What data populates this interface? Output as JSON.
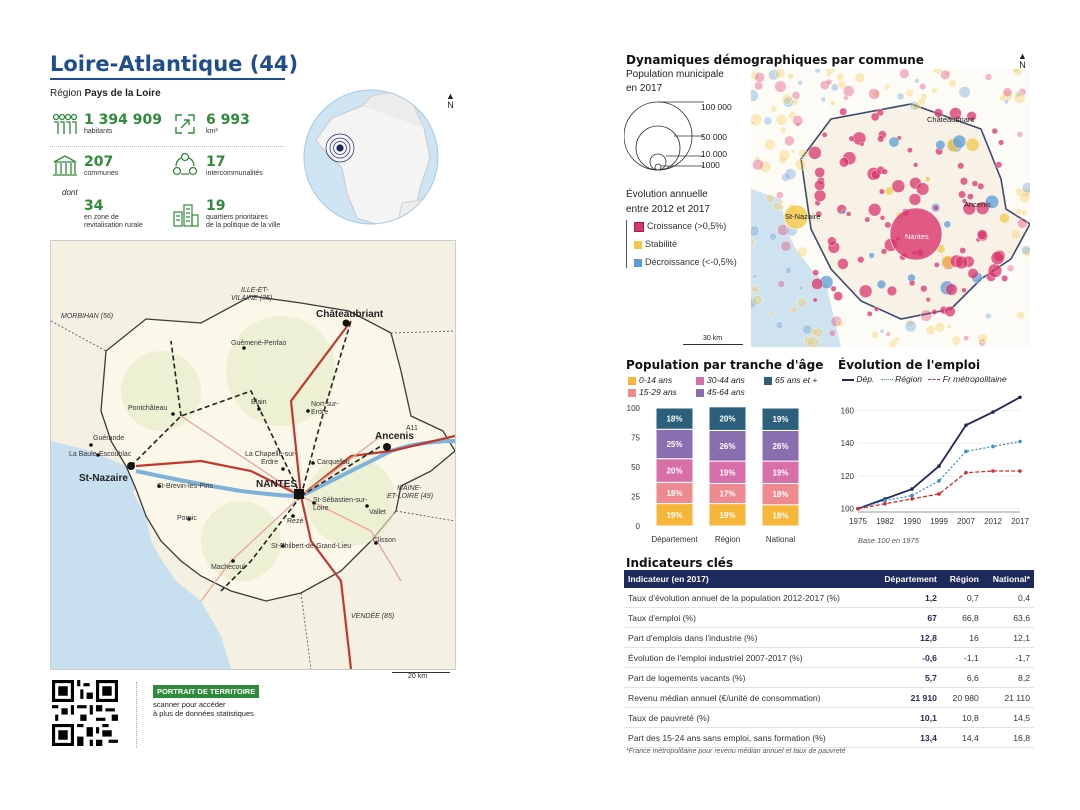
{
  "header": {
    "title": "Loire-Atlantique (44)",
    "region_prefix": "Région",
    "region_name": "Pays de la Loire"
  },
  "kpis": {
    "population": {
      "value": "1 394 909",
      "label": "habitants"
    },
    "area": {
      "value": "6 993",
      "label": "km²"
    },
    "communes": {
      "value": "207",
      "label": "communes"
    },
    "intercos": {
      "value": "17",
      "label": "intercommunalités"
    },
    "dont": "dont",
    "rural": {
      "value": "34",
      "label1": "en zone de",
      "label2": "revitalisation rurale"
    },
    "qpv": {
      "value": "19",
      "label1": "quartiers prioritaires",
      "label2": "de la politique de la ville"
    }
  },
  "north": "N",
  "map": {
    "cities": {
      "chateaubriant": "Châteaubriant",
      "ancenis": "Ancenis",
      "nantes": "NANTES",
      "stnazaire": "St-Nazaire"
    },
    "towns": {
      "guemene": "Guémené-Penfao",
      "blain": "Blain",
      "pontchateau": "Pontchâteau",
      "nortsurerdre1": "Nort-sur-",
      "nortsurerdre2": "Erdre",
      "guerande": "Guérande",
      "labaule": "La Baule-Escoublac",
      "lachapelle1": "La Chapelle-sur-",
      "lachapelle2": "Erdre",
      "carquefou": "Carquefou",
      "stbrevin": "St-Brevin-les-Pins",
      "stseb1": "St-Sébastien-sur-",
      "stseb2": "Loire",
      "reze": "Rezé",
      "vallet": "Vallet",
      "pornic": "Pornic",
      "clisson": "Clisson",
      "stphilbert": "St-Philbert-de-Grand-Lieu",
      "machecoul": "Machecoul"
    },
    "neighbors": {
      "ille1": "ILLE-ET-",
      "ille2": "VILAINE (35)",
      "morbihan": "MORBIHAN (56)",
      "maine1": "MAINE-",
      "maine2": "ET-LOIRE (49)",
      "vendee": "VENDÉE (85)"
    },
    "road_a11": "A11",
    "scale": "20 km"
  },
  "footer": {
    "badge": "PORTRAIT DE TERRITOIRE",
    "line1": "scanner pour accéder",
    "line2": "à plus de données statistiques"
  },
  "demo": {
    "title": "Dynamiques démographiques par commune",
    "pop_title": "Population municipale",
    "pop_sub": "en 2017",
    "sizes": [
      "100 000",
      "50 000",
      "10 000",
      "1000"
    ],
    "evol_title": "Évolution annuelle",
    "evol_sub": "entre 2012 et 2017",
    "growth": "Croissance (>0,5%)",
    "stable": "Stabilité",
    "decline": "Décroissance (<-0,5%)",
    "scale": "30 km",
    "map_labels": {
      "chateaubriant": "Châteaubriant",
      "stnazaire": "St-Nazaire",
      "ancenis": "Ancenis",
      "nantes": "Nantes"
    },
    "colors": {
      "growth": "#d9346b",
      "stable": "#f2c94c",
      "decline": "#5b9bd5"
    }
  },
  "age": {
    "title": "Population par tranche d'âge",
    "legend": [
      "0-14 ans",
      "15-29 ans",
      "30-44 ans",
      "45-64 ans",
      "65 ans et +"
    ],
    "colors": [
      "#f5b63a",
      "#ee8a8f",
      "#d86fa8",
      "#8a6fb0",
      "#2c5f7c"
    ],
    "chart_data": {
      "type": "bar",
      "stacked": true,
      "categories": [
        "Département",
        "Région",
        "National"
      ],
      "series": [
        {
          "name": "0-14 ans",
          "values": [
            19,
            19,
            18
          ]
        },
        {
          "name": "15-29 ans",
          "values": [
            18,
            17,
            18
          ]
        },
        {
          "name": "30-44 ans",
          "values": [
            20,
            19,
            19
          ]
        },
        {
          "name": "45-64 ans",
          "values": [
            25,
            26,
            26
          ]
        },
        {
          "name": "65 ans et +",
          "values": [
            18,
            20,
            19
          ]
        }
      ],
      "ylim": [
        0,
        100
      ],
      "yticks": [
        0,
        25,
        50,
        75,
        100
      ]
    }
  },
  "emploi": {
    "title": "Évolution de l'emploi",
    "legend": [
      "Dép.",
      "Région",
      "Fr métropolitaine"
    ],
    "note": "Base 100 en 1975",
    "chart_data": {
      "type": "line",
      "x": [
        "1975",
        "1982",
        "1990",
        "1999",
        "2007",
        "2012",
        "2017"
      ],
      "series": [
        {
          "name": "Dép.",
          "values": [
            100,
            106,
            112,
            126,
            151,
            159,
            168
          ]
        },
        {
          "name": "Région",
          "values": [
            100,
            105,
            108,
            117,
            135,
            138,
            141
          ]
        },
        {
          "name": "Fr métropolitaine",
          "values": [
            100,
            103,
            106,
            109,
            122,
            123,
            123
          ]
        }
      ],
      "ylim": [
        98,
        170
      ],
      "yticks": [
        100,
        120,
        140,
        160
      ]
    }
  },
  "indicators": {
    "title": "Indicateurs clés",
    "headers": [
      "Indicateur (en 2017)",
      "Département",
      "Région",
      "National*"
    ],
    "rows": [
      [
        "Taux d'évolution annuel de la population 2012-2017 (%)",
        "1,2",
        "0,7",
        "0,4"
      ],
      [
        "Taux d'emploi (%)",
        "67",
        "66,8",
        "63,6"
      ],
      [
        "Part d'emplois dans l'industrie (%)",
        "12,8",
        "16",
        "12,1"
      ],
      [
        "Évolution de l'emploi industriel 2007-2017 (%)",
        "-0,6",
        "-1,1",
        "-1,7"
      ],
      [
        "Part de logements vacants (%)",
        "5,7",
        "6,6",
        "8,2"
      ],
      [
        "Revenu médian annuel (€/unité de consommation)",
        "21 910",
        "20 980",
        "21 110"
      ],
      [
        "Taux de pauvreté (%)",
        "10,1",
        "10,8",
        "14,5"
      ],
      [
        "Part des 15-24 ans sans emploi, sans formation (%)",
        "13,4",
        "14,4",
        "16,8"
      ]
    ],
    "footnote": "*France métropolitaine pour revenu médian annuel et taux de pauvreté"
  }
}
